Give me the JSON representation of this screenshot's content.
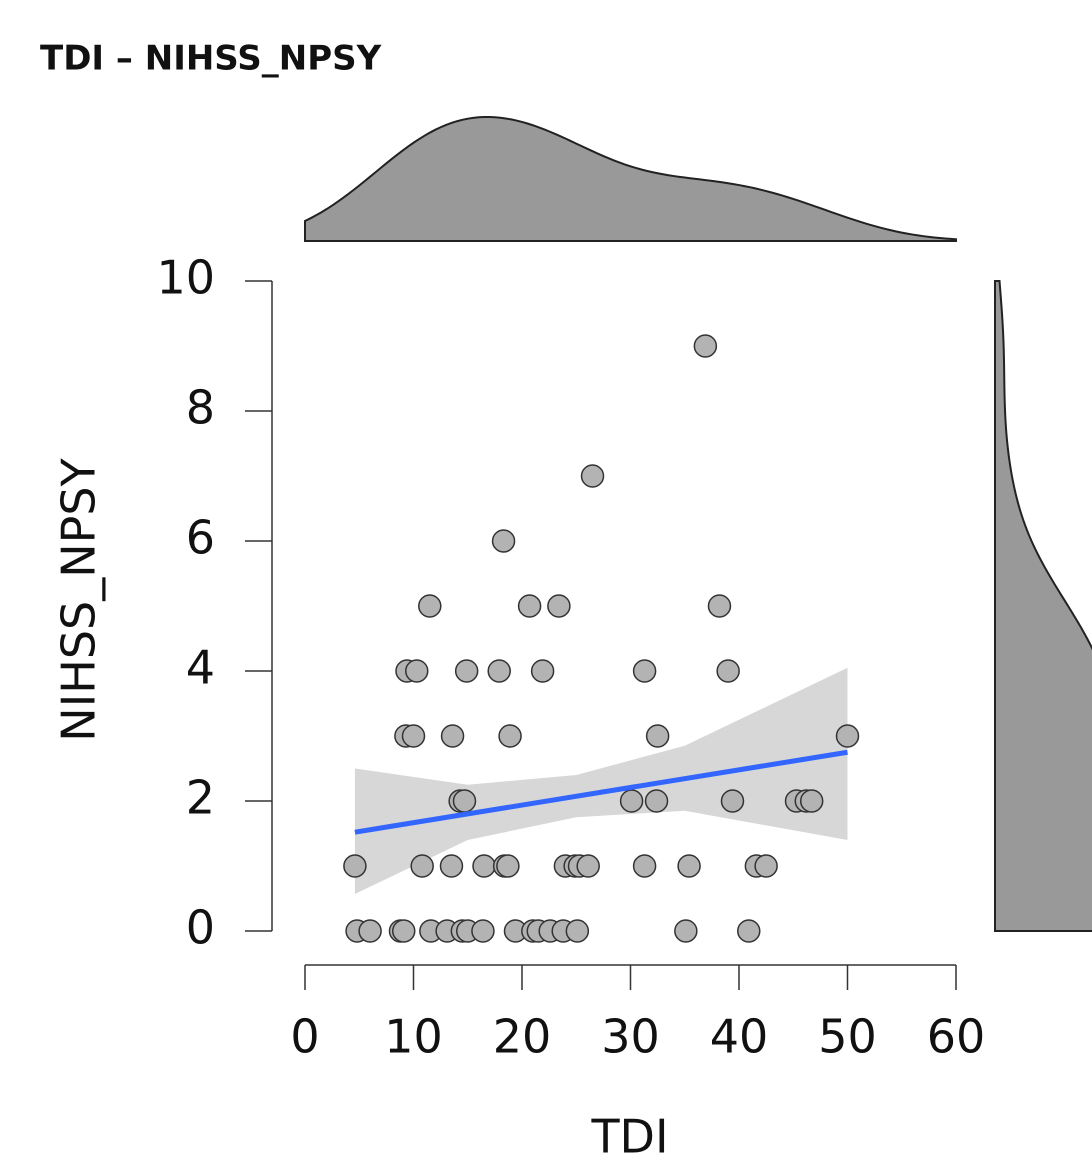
{
  "chart_data": {
    "type": "scatter",
    "title": "TDI – NIHSS_NPSY",
    "x_label": "TDI",
    "y_label": "NIHSS_NPSY",
    "x": [
      36.9,
      26.5,
      18.3,
      11.5,
      20.7,
      23.4,
      38.2,
      9.4,
      10.3,
      14.9,
      17.9,
      21.9,
      31.3,
      39.0,
      9.3,
      10.0,
      13.6,
      18.9,
      32.5,
      50.0,
      14.3,
      14.7,
      30.1,
      32.4,
      39.4,
      45.3,
      46.2,
      46.7,
      4.6,
      10.8,
      13.5,
      16.5,
      18.4,
      18.7,
      24.0,
      24.9,
      25.3,
      26.1,
      31.3,
      35.4,
      41.6,
      42.5,
      4.8,
      6.0,
      8.8,
      9.1,
      11.6,
      13.1,
      14.5,
      15.0,
      16.4,
      19.4,
      21.0,
      21.5,
      22.6,
      23.8,
      25.1,
      35.1,
      40.9
    ],
    "y": [
      9,
      7,
      6,
      5,
      5,
      5,
      5,
      4,
      4,
      4,
      4,
      4,
      4,
      4,
      3,
      3,
      3,
      3,
      3,
      3,
      2,
      2,
      2,
      2,
      2,
      2,
      2,
      2,
      1,
      1,
      1,
      1,
      1,
      1,
      1,
      1,
      1,
      1,
      1,
      1,
      1,
      1,
      0,
      0,
      0,
      0,
      0,
      0,
      0,
      0,
      0,
      0,
      0,
      0,
      0,
      0,
      0,
      0,
      0
    ],
    "color": "#b3b3b3",
    "trend": {
      "color": "#3366ff",
      "x": [
        4.6,
        50.0
      ],
      "y": [
        1.52,
        2.75
      ]
    },
    "band": {
      "color": "#d3d3d3",
      "x": [
        4.6,
        15,
        25,
        35,
        50
      ],
      "lower": [
        0.57,
        1.4,
        1.75,
        1.85,
        1.4
      ],
      "upper": [
        2.5,
        2.25,
        2.4,
        2.85,
        4.05
      ]
    },
    "xlim": [
      0,
      60
    ],
    "xticks": [
      0,
      10,
      20,
      30,
      40,
      50,
      60
    ],
    "ylim": [
      0,
      10
    ],
    "yticks": [
      0,
      2,
      4,
      6,
      8,
      10
    ]
  }
}
